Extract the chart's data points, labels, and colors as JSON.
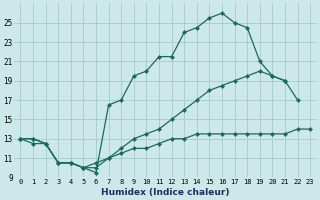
{
  "xlabel": "Humidex (Indice chaleur)",
  "bg_color": "#cce8e8",
  "grid_color": "#aacece",
  "line_color": "#1a6b5a",
  "xlim_min": -0.5,
  "xlim_max": 23.5,
  "ylim_min": 9,
  "ylim_max": 27,
  "xticks": [
    0,
    1,
    2,
    3,
    4,
    5,
    6,
    7,
    8,
    9,
    10,
    11,
    12,
    13,
    14,
    15,
    16,
    17,
    18,
    19,
    20,
    21,
    22,
    23
  ],
  "yticks": [
    9,
    11,
    13,
    15,
    17,
    19,
    21,
    23,
    25
  ],
  "curve1_x": [
    0,
    1,
    2,
    3,
    4,
    5,
    6,
    7,
    8,
    9,
    10,
    11,
    12,
    13,
    14,
    15,
    16,
    17,
    18,
    19,
    20,
    21,
    22,
    23
  ],
  "curve1_y": [
    13,
    13,
    12.5,
    10.5,
    10.5,
    10,
    9.5,
    16.5,
    17,
    19.5,
    20,
    21.5,
    21.5,
    24,
    24.5,
    25.5,
    26,
    25,
    24.5,
    21,
    19.5,
    19,
    17,
    null
  ],
  "curve2_x": [
    0,
    1,
    2,
    3,
    4,
    5,
    6,
    7,
    8,
    9,
    10,
    11,
    12,
    13,
    14,
    15,
    16,
    17,
    18,
    19,
    20,
    21,
    22,
    23
  ],
  "curve2_y": [
    13,
    13,
    12.5,
    10.5,
    10.5,
    10,
    10,
    11,
    12,
    13,
    13.5,
    14,
    15,
    16,
    17,
    18,
    18.5,
    19,
    19.5,
    20,
    19.5,
    19,
    null,
    null
  ],
  "curve3_x": [
    0,
    1,
    2,
    3,
    4,
    5,
    6,
    7,
    8,
    9,
    10,
    11,
    12,
    13,
    14,
    15,
    16,
    17,
    18,
    19,
    20,
    21,
    22,
    23
  ],
  "curve3_y": [
    13,
    12.5,
    12.5,
    10.5,
    10.5,
    10,
    10.5,
    11,
    11.5,
    12,
    12,
    12.5,
    13,
    13,
    13.5,
    13.5,
    13.5,
    13.5,
    13.5,
    13.5,
    13.5,
    13.5,
    14,
    14
  ]
}
